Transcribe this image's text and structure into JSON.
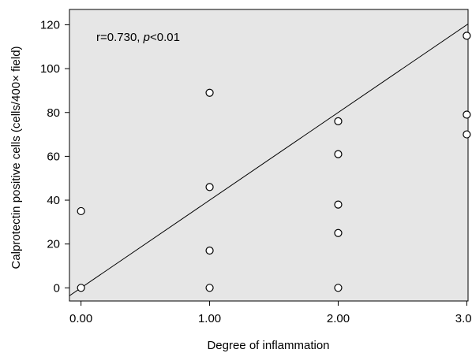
{
  "chart_data": {
    "type": "scatter",
    "xlabel": "Degree of inflammation",
    "ylabel": "Calprotectin positive cells (cells/400× field)",
    "xlim": [
      -0.09,
      3.01
    ],
    "ylim": [
      -6,
      127
    ],
    "x_ticks": [
      "0.00",
      "1.00",
      "2.00",
      "3.00"
    ],
    "y_ticks": [
      "0",
      "20",
      "40",
      "60",
      "80",
      "100",
      "120"
    ],
    "annotation": {
      "r_text": "r=0.730, ",
      "p_italic": "p",
      "p_text": "<0.01"
    },
    "points": [
      {
        "x": 0,
        "y": 0
      },
      {
        "x": 0,
        "y": 35
      },
      {
        "x": 1,
        "y": 0
      },
      {
        "x": 1,
        "y": 17
      },
      {
        "x": 1,
        "y": 46
      },
      {
        "x": 1,
        "y": 89
      },
      {
        "x": 2,
        "y": 0
      },
      {
        "x": 2,
        "y": 25
      },
      {
        "x": 2,
        "y": 38
      },
      {
        "x": 2,
        "y": 61
      },
      {
        "x": 2,
        "y": 76
      },
      {
        "x": 3,
        "y": 70
      },
      {
        "x": 3,
        "y": 79
      },
      {
        "x": 3,
        "y": 115
      }
    ],
    "fit_line": {
      "intercept": 0,
      "slope": 40
    },
    "colors": {
      "plot_background": "#e6e6e6",
      "marker": "#000000"
    },
    "grid": false
  }
}
